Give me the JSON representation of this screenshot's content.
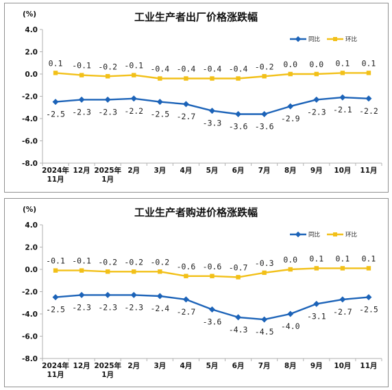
{
  "colors": {
    "yoy": "#1c63b8",
    "mom": "#f2c018",
    "axis": "#b0b0b0"
  },
  "chart_data": [
    {
      "type": "line",
      "title": "工业生产者出厂价格涨跌幅",
      "unit": "(%)",
      "ylim": [
        -8.0,
        4.0
      ],
      "yticks": [
        "4.0",
        "2.0",
        "0.0",
        "-2.0",
        "-4.0",
        "-6.0",
        "-8.0"
      ],
      "categories": [
        [
          "2024年",
          "11月"
        ],
        [
          "12月"
        ],
        [
          "2025年",
          "1月"
        ],
        [
          "2月"
        ],
        [
          "3月"
        ],
        [
          "4月"
        ],
        [
          "5月"
        ],
        [
          "6月"
        ],
        [
          "7月"
        ],
        [
          "8月"
        ],
        [
          "9月"
        ],
        [
          "10月"
        ],
        [
          "11月"
        ]
      ],
      "legend_position": "top-right",
      "series": [
        {
          "name": "同比",
          "values": [
            -2.5,
            -2.3,
            -2.3,
            -2.2,
            -2.5,
            -2.7,
            -3.3,
            -3.6,
            -3.6,
            -2.9,
            -2.3,
            -2.1,
            -2.2
          ],
          "labels": [
            "-2.5",
            "-2.3",
            "-2.3",
            "-2.2",
            "-2.5",
            "-2.7",
            "-3.3",
            "-3.6",
            "-3.6",
            "-2.9",
            "-2.3",
            "-2.1",
            "-2.2"
          ]
        },
        {
          "name": "环比",
          "values": [
            0.1,
            -0.1,
            -0.2,
            -0.1,
            -0.4,
            -0.4,
            -0.4,
            -0.4,
            -0.2,
            0.0,
            0.0,
            0.1,
            0.1
          ],
          "labels": [
            "0.1",
            "-0.1",
            "-0.2",
            "-0.1",
            "-0.4",
            "-0.4",
            "-0.4",
            "-0.4",
            "-0.2",
            "0.0",
            "0.0",
            "0.1",
            "0.1"
          ]
        }
      ]
    },
    {
      "type": "line",
      "title": "工业生产者购进价格涨跌幅",
      "unit": "(%)",
      "ylim": [
        -8.0,
        4.0
      ],
      "yticks": [
        "4.0",
        "2.0",
        "0.0",
        "-2.0",
        "-4.0",
        "-6.0",
        "-8.0"
      ],
      "categories": [
        [
          "2024年",
          "11月"
        ],
        [
          "12月"
        ],
        [
          "2025年",
          "1月"
        ],
        [
          "2月"
        ],
        [
          "3月"
        ],
        [
          "4月"
        ],
        [
          "5月"
        ],
        [
          "6月"
        ],
        [
          "7月"
        ],
        [
          "8月"
        ],
        [
          "9月"
        ],
        [
          "10月"
        ],
        [
          "11月"
        ]
      ],
      "legend_position": "top-right",
      "series": [
        {
          "name": "同比",
          "values": [
            -2.5,
            -2.3,
            -2.3,
            -2.3,
            -2.4,
            -2.7,
            -3.6,
            -4.3,
            -4.5,
            -4.0,
            -3.1,
            -2.7,
            -2.5
          ],
          "labels": [
            "-2.5",
            "-2.3",
            "-2.3",
            "-2.3",
            "-2.4",
            "-2.7",
            "-3.6",
            "-4.3",
            "-4.5",
            "-4.0",
            "-3.1",
            "-2.7",
            "-2.5"
          ]
        },
        {
          "name": "环比",
          "values": [
            -0.1,
            -0.1,
            -0.2,
            -0.2,
            -0.2,
            -0.6,
            -0.6,
            -0.7,
            -0.3,
            0.0,
            0.1,
            0.1,
            0.1
          ],
          "labels": [
            "-0.1",
            "-0.1",
            "-0.2",
            "-0.2",
            "-0.2",
            "-0.6",
            "-0.6",
            "-0.7",
            "-0.3",
            "0.0",
            "0.1",
            "0.1",
            "0.1"
          ]
        }
      ]
    }
  ]
}
